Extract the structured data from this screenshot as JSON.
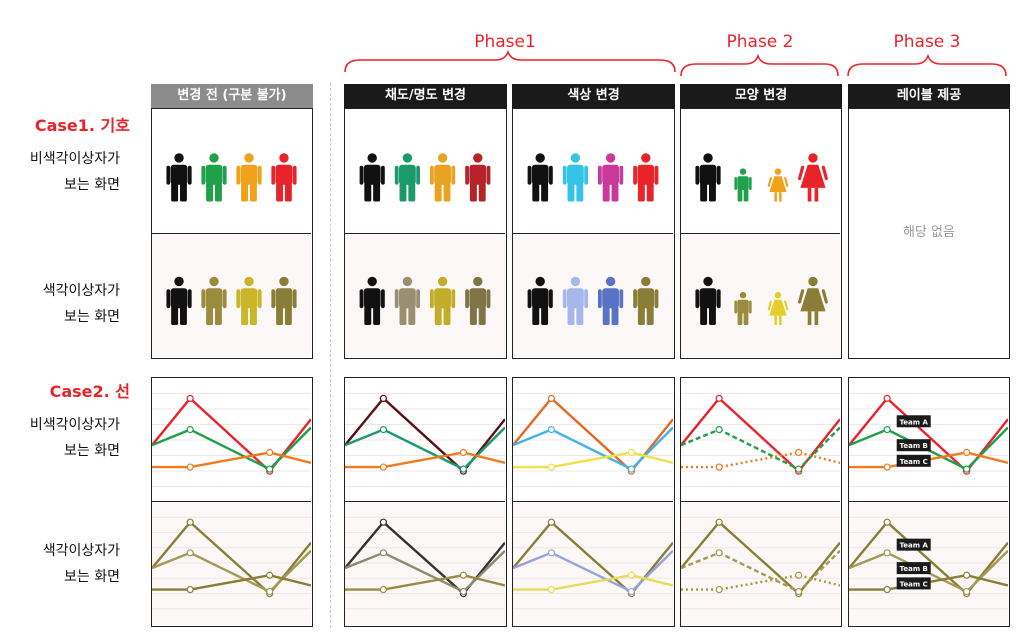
{
  "phases": [
    "Phase1",
    "Phase 2",
    "Phase 3"
  ],
  "column_headers": [
    "변경 전 (구분 불가)",
    "채도/명도 변경",
    "색상 변경",
    "모양 변경",
    "레이블 제공"
  ],
  "cases": [
    "Case1. 기호",
    "Case2. 선"
  ],
  "row_labels": {
    "normal_line1": "비색각이상자가",
    "normal_line2": "보는 화면",
    "cvd_line1": "색각이상자가",
    "cvd_line2": "보는 화면"
  },
  "not_applicable": "해당 없음",
  "team_labels": [
    "Team A",
    "Team B",
    "Team C"
  ],
  "colors": {
    "accent_red": "#e8242a",
    "header_dark": "#1a1a1a",
    "header_gray": "#8c8c8c",
    "olive": "#8a7d38",
    "olive_light": "#a39a55",
    "olive_yellow": "#c8b626"
  },
  "icon_colors": {
    "c1_normal": [
      "#111111",
      "#1fa049",
      "#f0a21a",
      "#e8242a"
    ],
    "c1_cvd": [
      "#111111",
      "#9a8b3e",
      "#c9b629",
      "#8a7d38"
    ],
    "c2_normal": [
      "#111111",
      "#1c9a6c",
      "#e8a321",
      "#b5232b"
    ],
    "c2_cvd": [
      "#111111",
      "#9a8f70",
      "#c2ad2a",
      "#7f7448"
    ],
    "c3_normal": [
      "#111111",
      "#35c3e8",
      "#c9389a",
      "#e8242a"
    ],
    "c3_cvd": [
      "#111111",
      "#a8b7ea",
      "#5a72c4",
      "#8a7d38"
    ],
    "c4_normal": [
      "#111111",
      "#1fa049",
      "#f0a21a",
      "#e8242a"
    ],
    "c4_cvd": [
      "#111111",
      "#9a8b3e",
      "#e6cf2a",
      "#8a7d38"
    ]
  },
  "line_colors": {
    "c1_normal": [
      "#e8242a",
      "#1fa049",
      "#f07a1e"
    ],
    "c1_cvd": [
      "#8a7d38",
      "#a39a55",
      "#8a7d38"
    ],
    "c2_normal": [
      "#5a0f1a",
      "#1c9a6c",
      "#f07a1e"
    ],
    "c2_cvd": [
      "#333333",
      "#8d8a70",
      "#9a8b3e"
    ],
    "c3_normal": [
      "#e26a25",
      "#45b3e5",
      "#eee046"
    ],
    "c3_cvd": [
      "#8a7d38",
      "#97a3dd",
      "#e6dc5a"
    ],
    "c4_normal": [
      "#e8242a",
      "#1fa049",
      "#f07a1e"
    ],
    "c4_cvd": [
      "#8a7d38",
      "#a39a55",
      "#a9963a"
    ],
    "c5_normal": [
      "#e8242a",
      "#1fa049",
      "#f07a1e"
    ],
    "c5_cvd": [
      "#8a7d38",
      "#a39a55",
      "#8a7d38"
    ]
  }
}
